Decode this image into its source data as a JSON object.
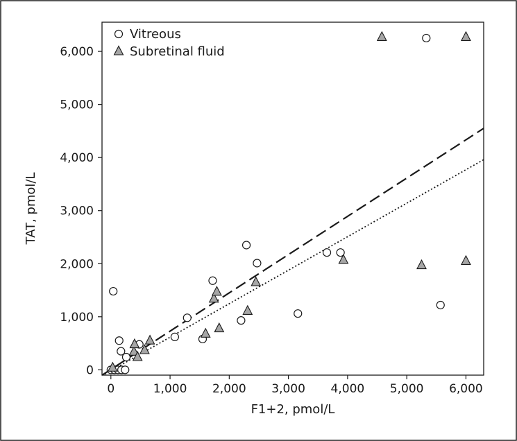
{
  "chart_data": {
    "type": "scatter",
    "title": "",
    "xlabel": "F1+2, pmol/L",
    "ylabel": "TAT, pmol/L",
    "xlim": [
      -150,
      6300
    ],
    "ylim": [
      -100,
      6550
    ],
    "x_ticks": [
      0,
      1000,
      2000,
      3000,
      4000,
      5000,
      6000
    ],
    "x_tick_labels": [
      "0",
      "1,000",
      "2,000",
      "3,000",
      "4,000",
      "5,000",
      "6,000"
    ],
    "y_ticks": [
      0,
      1000,
      2000,
      3000,
      4000,
      5000,
      6000
    ],
    "y_tick_labels": [
      "0",
      "1,000",
      "2,000",
      "3,000",
      "4,000",
      "5,000",
      "6,000"
    ],
    "grid": false,
    "legend_position": "top-left",
    "series": [
      {
        "name": "Vitreous",
        "marker": "open-circle",
        "color": "#1a1a1a",
        "fill": "#ffffff",
        "points": [
          [
            0,
            0
          ],
          [
            60,
            0
          ],
          [
            120,
            0
          ],
          [
            180,
            0
          ],
          [
            240,
            0
          ],
          [
            40,
            1480
          ],
          [
            140,
            550
          ],
          [
            170,
            350
          ],
          [
            260,
            240
          ],
          [
            480,
            480
          ],
          [
            1080,
            620
          ],
          [
            1290,
            980
          ],
          [
            1550,
            580
          ],
          [
            1720,
            1680
          ],
          [
            2200,
            930
          ],
          [
            2290,
            2350
          ],
          [
            2470,
            2010
          ],
          [
            3160,
            1060
          ],
          [
            3650,
            2210
          ],
          [
            3880,
            2210
          ],
          [
            5330,
            6250
          ],
          [
            5570,
            1220
          ]
        ]
      },
      {
        "name": "Subretinal fluid",
        "marker": "filled-triangle",
        "color": "#1a1a1a",
        "fill": "#a6a6a6",
        "points": [
          [
            30,
            40
          ],
          [
            390,
            340
          ],
          [
            400,
            480
          ],
          [
            450,
            240
          ],
          [
            570,
            370
          ],
          [
            660,
            550
          ],
          [
            1600,
            680
          ],
          [
            1740,
            1340
          ],
          [
            1790,
            1470
          ],
          [
            1830,
            780
          ],
          [
            2310,
            1110
          ],
          [
            2450,
            1650
          ],
          [
            3930,
            2070
          ],
          [
            4580,
            6270
          ],
          [
            5250,
            1970
          ],
          [
            6000,
            6270
          ],
          [
            6000,
            2050
          ]
        ]
      }
    ],
    "fit_lines": [
      {
        "style": "dashed",
        "x": [
          -150,
          6300
        ],
        "y": [
          -100,
          4550
        ]
      },
      {
        "style": "dotted",
        "x": [
          -100,
          6300
        ],
        "y": [
          -80,
          3960
        ]
      }
    ]
  }
}
